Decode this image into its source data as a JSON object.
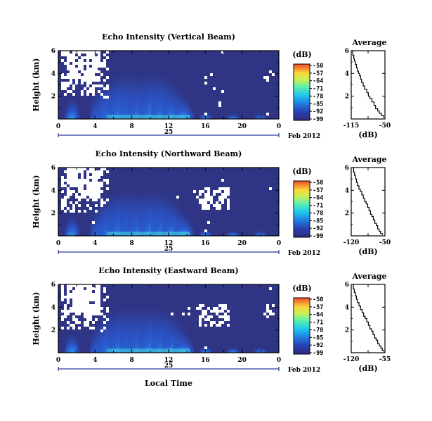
{
  "figure": {
    "date_label": "Feb 2012",
    "day_label": "25",
    "xlabel_bottom": "Local Time",
    "colorbar_unit": "(dB)",
    "colorbar_ticks": [
      "-50",
      "-57",
      "-64",
      "-71",
      "-78",
      "-85",
      "-92",
      "-99"
    ],
    "x_ticks": [
      "0",
      "4",
      "8",
      "12",
      "16",
      "20",
      "0"
    ]
  },
  "chart_data": [
    {
      "type": "heatmap",
      "title": "Echo Intensity (Vertical Beam)",
      "ylabel": "Height (km)",
      "xlabel": "",
      "x_range_hours": [
        0,
        24
      ],
      "ylim": [
        0,
        6
      ],
      "y_ticks": [
        "6",
        "4",
        "2"
      ],
      "color_range_db": [
        -99,
        -50
      ]
    },
    {
      "type": "line",
      "title": "Average",
      "xlabel": "(dB)",
      "xlim": [
        -115,
        -50
      ],
      "x_ticks": [
        "-115",
        "-50"
      ],
      "ylim": [
        0,
        6
      ],
      "y_ticks": [
        "6",
        "4",
        "2"
      ],
      "x": [
        -113,
        -112,
        -110,
        -109,
        -107,
        -105,
        -103,
        -101,
        -99,
        -97,
        -95,
        -92,
        -89,
        -85,
        -82,
        -79,
        -75,
        -71,
        -68,
        -64,
        -61,
        -57,
        -53
      ],
      "y": [
        6.0,
        5.6,
        5.3,
        5.1,
        4.8,
        4.5,
        4.2,
        4.0,
        3.8,
        3.5,
        3.2,
        2.9,
        2.6,
        2.3,
        2.0,
        1.8,
        1.5,
        1.2,
        0.9,
        0.7,
        0.5,
        0.3,
        0.1
      ]
    },
    {
      "type": "heatmap",
      "title": "Echo Intensity (Northward Beam)",
      "ylabel": "Height (km)",
      "xlabel": "",
      "x_range_hours": [
        0,
        24
      ],
      "ylim": [
        0,
        6
      ],
      "y_ticks": [
        "6",
        "4",
        "2"
      ],
      "color_range_db": [
        -99,
        -50
      ]
    },
    {
      "type": "line",
      "title": "Average",
      "xlabel": "(dB)",
      "xlim": [
        -120,
        -50
      ],
      "x_ticks": [
        "-120",
        "-50"
      ],
      "ylim": [
        0,
        6
      ],
      "y_ticks": [
        "6",
        "4",
        "2"
      ],
      "x": [
        -117,
        -115,
        -113,
        -111,
        -109,
        -107,
        -104,
        -101,
        -98,
        -95,
        -92,
        -89,
        -86,
        -83,
        -80,
        -77,
        -74,
        -71,
        -68,
        -65,
        -62,
        -59,
        -55
      ],
      "y": [
        6.0,
        5.6,
        5.3,
        5.0,
        4.7,
        4.4,
        4.1,
        3.9,
        3.6,
        3.3,
        3.0,
        2.8,
        2.5,
        2.2,
        1.9,
        1.7,
        1.4,
        1.1,
        0.9,
        0.6,
        0.4,
        0.2,
        0.1
      ]
    },
    {
      "type": "heatmap",
      "title": "Echo Intensity (Eastward Beam)",
      "ylabel": "Height (km)",
      "xlabel": "Local Time",
      "x_range_hours": [
        0,
        24
      ],
      "ylim": [
        0,
        6
      ],
      "y_ticks": [
        "6",
        "4",
        "2"
      ],
      "color_range_db": [
        -99,
        -50
      ]
    },
    {
      "type": "line",
      "title": "Average",
      "xlabel": "(dB)",
      "xlim": [
        -120,
        -55
      ],
      "x_ticks": [
        "-120",
        "-55"
      ],
      "ylim": [
        0,
        6
      ],
      "y_ticks": [
        "6",
        "4",
        "2"
      ],
      "x": [
        -117,
        -116,
        -114,
        -112,
        -110,
        -108,
        -105,
        -102,
        -99,
        -96,
        -93,
        -90,
        -87,
        -84,
        -81,
        -78,
        -75,
        -72,
        -69,
        -66,
        -63,
        -60,
        -57
      ],
      "y": [
        6.0,
        5.6,
        5.3,
        5.0,
        4.7,
        4.4,
        4.1,
        3.8,
        3.5,
        3.2,
        3.0,
        2.7,
        2.4,
        2.1,
        1.9,
        1.6,
        1.3,
        1.1,
        0.8,
        0.6,
        0.4,
        0.2,
        0.1
      ]
    }
  ]
}
